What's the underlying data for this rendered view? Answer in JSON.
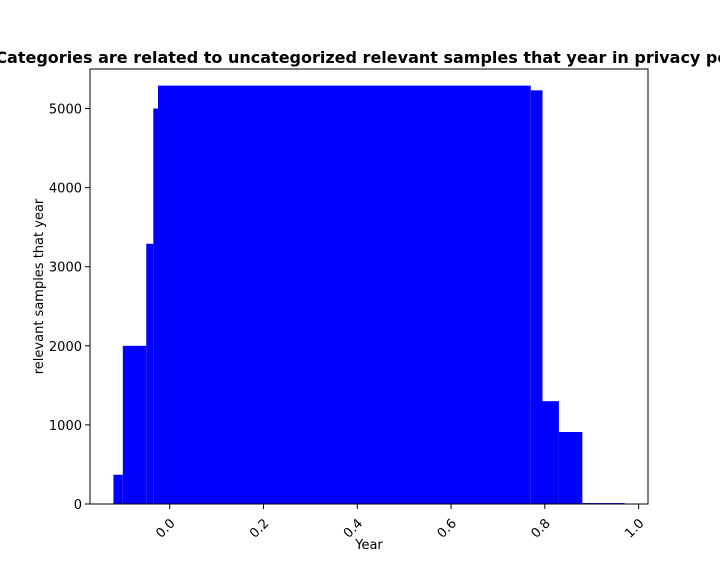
{
  "chart_data": {
    "type": "bar",
    "title": "Categories are related to uncategorized relevant samples that year in privacy policies",
    "xlabel": "Year",
    "ylabel": "relevant samples that year",
    "xlim": [
      -0.17,
      1.02
    ],
    "ylim": [
      0,
      5500
    ],
    "x_ticks": [
      "0.0",
      "0.2",
      "0.4",
      "0.6",
      "0.8",
      "1.0"
    ],
    "y_ticks": [
      "0",
      "1000",
      "2000",
      "3000",
      "4000",
      "5000"
    ],
    "grid": false,
    "bar_color": "#0000ff",
    "bars": [
      {
        "x0": -0.12,
        "x1": -0.1,
        "value": 370
      },
      {
        "x0": -0.1,
        "x1": -0.05,
        "value": 2000
      },
      {
        "x0": -0.05,
        "x1": -0.035,
        "value": 3290
      },
      {
        "x0": -0.035,
        "x1": -0.025,
        "value": 5000
      },
      {
        "x0": -0.025,
        "x1": 0.77,
        "value": 5290
      },
      {
        "x0": 0.77,
        "x1": 0.795,
        "value": 5230
      },
      {
        "x0": 0.795,
        "x1": 0.83,
        "value": 1300
      },
      {
        "x0": 0.83,
        "x1": 0.88,
        "value": 910
      },
      {
        "x0": 0.88,
        "x1": 0.97,
        "value": 12
      }
    ]
  }
}
